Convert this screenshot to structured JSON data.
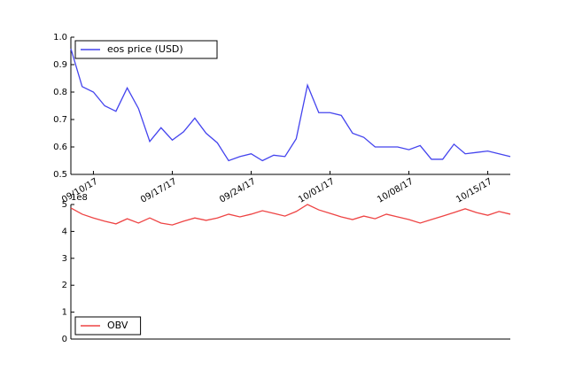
{
  "chart_data": [
    {
      "type": "line",
      "legend": "upper left",
      "x": [
        "09/08/17",
        "09/09/17",
        "09/10/17",
        "09/11/17",
        "09/12/17",
        "09/13/17",
        "09/14/17",
        "09/15/17",
        "09/16/17",
        "09/17/17",
        "09/18/17",
        "09/19/17",
        "09/20/17",
        "09/21/17",
        "09/22/17",
        "09/23/17",
        "09/24/17",
        "09/25/17",
        "09/26/17",
        "09/27/17",
        "09/28/17",
        "09/29/17",
        "09/30/17",
        "10/01/17",
        "10/02/17",
        "10/03/17",
        "10/04/17",
        "10/05/17",
        "10/06/17",
        "10/07/17",
        "10/08/17",
        "10/09/17",
        "10/10/17",
        "10/11/17",
        "10/12/17",
        "10/13/17",
        "10/14/17",
        "10/15/17",
        "10/16/17",
        "10/17/17"
      ],
      "xlim": [
        "09/08/17",
        "10/17/17"
      ],
      "xticks": [
        "09/10/17",
        "09/17/17",
        "09/24/17",
        "10/01/17",
        "10/08/17",
        "10/15/17"
      ],
      "ylim": [
        0.5,
        1
      ],
      "yticks": [
        0.5,
        0.6,
        0.7,
        0.8,
        0.9,
        {
          "value": 1,
          "label": "1.0"
        }
      ],
      "series": [
        {
          "name": "eos price (USD)",
          "color": "#4444ee",
          "values": [
            0.958,
            0.82,
            0.8,
            0.75,
            0.73,
            0.815,
            0.74,
            0.62,
            0.67,
            0.625,
            0.655,
            0.705,
            0.65,
            0.615,
            0.55,
            0.565,
            0.575,
            0.55,
            0.57,
            0.565,
            0.63,
            0.825,
            0.725,
            0.725,
            0.715,
            0.65,
            0.635,
            0.6,
            0.6,
            0.6,
            0.59,
            0.605,
            0.555,
            0.555,
            0.61,
            0.575,
            0.58,
            0.585,
            0.575,
            0.565
          ]
        }
      ]
    },
    {
      "type": "line",
      "legend": "lower left",
      "offset_label": "1e8",
      "x": [
        "09/08/17",
        "09/09/17",
        "09/10/17",
        "09/11/17",
        "09/12/17",
        "09/13/17",
        "09/14/17",
        "09/15/17",
        "09/16/17",
        "09/17/17",
        "09/18/17",
        "09/19/17",
        "09/20/17",
        "09/21/17",
        "09/22/17",
        "09/23/17",
        "09/24/17",
        "09/25/17",
        "09/26/17",
        "09/27/17",
        "09/28/17",
        "09/29/17",
        "09/30/17",
        "10/01/17",
        "10/02/17",
        "10/03/17",
        "10/04/17",
        "10/05/17",
        "10/06/17",
        "10/07/17",
        "10/08/17",
        "10/09/17",
        "10/10/17",
        "10/11/17",
        "10/12/17",
        "10/13/17",
        "10/14/17",
        "10/15/17",
        "10/16/17",
        "10/17/17"
      ],
      "xlim": [
        "09/08/17",
        "10/17/17"
      ],
      "ylim": [
        0,
        5
      ],
      "yticks": [
        0,
        1,
        2,
        3,
        4,
        5
      ],
      "series": [
        {
          "name": "OBV",
          "color": "#ee4444",
          "values": [
            4.87,
            4.64,
            4.5,
            4.38,
            4.28,
            4.47,
            4.31,
            4.5,
            4.31,
            4.24,
            4.38,
            4.5,
            4.41,
            4.5,
            4.64,
            4.54,
            4.64,
            4.77,
            4.67,
            4.57,
            4.74,
            5.0,
            4.8,
            4.67,
            4.54,
            4.44,
            4.57,
            4.47,
            4.64,
            4.54,
            4.44,
            4.31,
            4.44,
            4.57,
            4.7,
            4.84,
            4.7,
            4.6,
            4.74,
            4.64
          ]
        }
      ]
    }
  ]
}
